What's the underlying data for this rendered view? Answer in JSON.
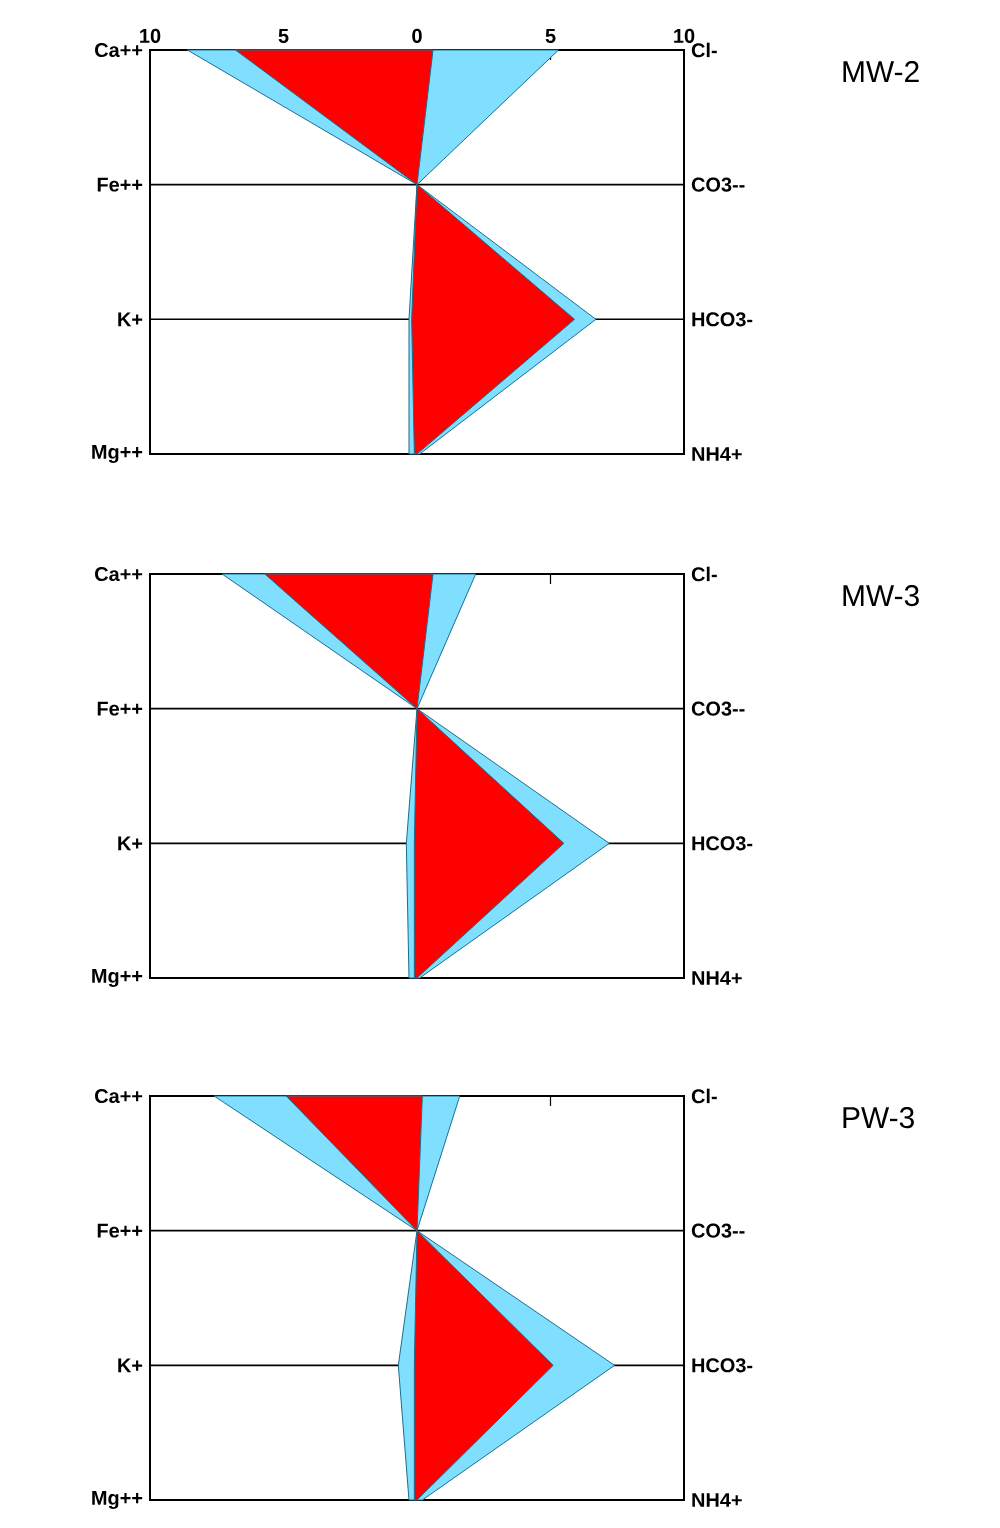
{
  "chart_data": [
    {
      "type": "area",
      "annotations": [
        "MW-2"
      ],
      "orientation": "horizontal",
      "categories": [
        "Ca++",
        "Fe++",
        "K+",
        "Mg++"
      ],
      "y2_categories": [
        "Cl-",
        "CO3--",
        "HCO3-",
        "NH4+"
      ],
      "xlim": [
        -10,
        10
      ],
      "xticks": [
        {
          "value": -10,
          "label": "10"
        },
        {
          "value": -5,
          "label": "5"
        },
        0,
        5,
        10
      ],
      "grid": "y",
      "series": [
        {
          "color": "#80dfff",
          "values": [
            null,
            null,
            null,
            null
          ],
          "lower": [
            -8.6,
            0,
            -0.3,
            -0.3
          ],
          "upper": [
            5.3,
            0,
            6.7,
            0.1
          ]
        },
        {
          "color": "#ff0000",
          "values": [
            null,
            null,
            null,
            null
          ],
          "lower": [
            -6.8,
            0,
            -0.2,
            -0.1
          ],
          "upper": [
            0.6,
            0,
            5.9,
            0.0
          ]
        }
      ]
    },
    {
      "type": "area",
      "annotations": [
        "MW-3"
      ],
      "orientation": "horizontal",
      "categories": [
        "Ca++",
        "Fe++",
        "K+",
        "Mg++"
      ],
      "y2_categories": [
        "Cl-",
        "CO3--",
        "HCO3-",
        "NH4+"
      ],
      "xlim": [
        -10,
        10
      ],
      "xticks": [
        {
          "value": -5,
          "label": null
        },
        {
          "value": 0,
          "label": null
        },
        {
          "value": 5,
          "label": null
        }
      ],
      "grid": "y",
      "tick_labels": "y",
      "series": [
        {
          "color": "#80dfff",
          "values": [
            null,
            null,
            null,
            null
          ],
          "lower": [
            -7.3,
            0,
            -0.4,
            -0.3
          ],
          "upper": [
            2.2,
            0,
            7.2,
            0.1
          ]
        },
        {
          "color": "#ff0000",
          "values": [
            null,
            null,
            null,
            null
          ],
          "lower": [
            -5.7,
            0,
            -0.1,
            -0.1
          ],
          "upper": [
            0.6,
            0,
            5.5,
            0.0
          ]
        }
      ]
    },
    {
      "type": "area",
      "annotations": [
        "PW-3"
      ],
      "orientation": "horizontal",
      "categories": [
        "Ca++",
        "Fe++",
        "K+",
        "Mg++"
      ],
      "y2_categories": [
        "Cl-",
        "CO3--",
        "HCO3-",
        "NH4+"
      ],
      "xlim": [
        -10,
        10
      ],
      "xticks": [
        {
          "value": -5,
          "label": null
        },
        {
          "value": 0,
          "label": null
        },
        {
          "value": 5,
          "label": null
        }
      ],
      "grid": "y",
      "tick_labels": "y",
      "series": [
        {
          "color": "#80dfff",
          "values": [
            null,
            null,
            null,
            null
          ],
          "lower": [
            -7.6,
            0,
            -0.7,
            -0.3
          ],
          "upper": [
            1.6,
            0,
            7.4,
            0.2
          ]
        },
        {
          "color": "#ff0000",
          "values": [
            null,
            null,
            null,
            null
          ],
          "lower": [
            -4.9,
            0,
            -0.1,
            -0.1
          ],
          "upper": [
            0.2,
            0,
            5.1,
            0.0
          ]
        }
      ]
    }
  ]
}
